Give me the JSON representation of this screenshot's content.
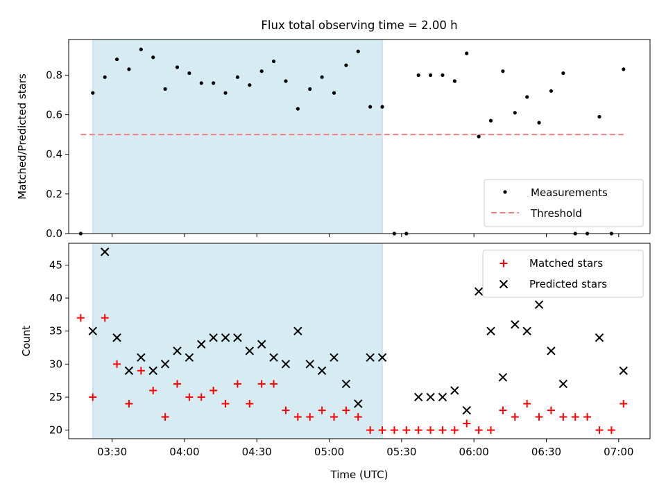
{
  "title": "Flux total observing time = 2.00 h",
  "xlabel": "Time (UTC)",
  "colors": {
    "span": "#add8e6",
    "measurements": "#000000",
    "threshold": "#f08080",
    "matched": "#ff0000",
    "predicted": "#000000"
  },
  "chart_data": [
    {
      "type": "scatter",
      "ylabel": "Matched/Predicted stars",
      "xlim": [
        "03:12",
        "07:13"
      ],
      "ylim": [
        0,
        0.98
      ],
      "yticks": [
        "0.0",
        "0.2",
        "0.4",
        "0.6",
        "0.8"
      ],
      "shaded_span": [
        "03:22",
        "05:22"
      ],
      "legend_position": "lower right",
      "threshold": {
        "name": "Threshold",
        "y": 0.5,
        "x_range": [
          "03:17",
          "07:02"
        ],
        "style": "dashed"
      },
      "series": [
        {
          "name": "Measurements",
          "x": [
            "03:17",
            "03:22",
            "03:27",
            "03:32",
            "03:37",
            "03:42",
            "03:47",
            "03:52",
            "03:57",
            "04:02",
            "04:07",
            "04:12",
            "04:17",
            "04:22",
            "04:27",
            "04:32",
            "04:37",
            "04:42",
            "04:47",
            "04:52",
            "04:57",
            "05:02",
            "05:07",
            "05:12",
            "05:17",
            "05:22",
            "05:27",
            "05:32",
            "05:37",
            "05:42",
            "05:47",
            "05:52",
            "05:57",
            "06:02",
            "06:07",
            "06:12",
            "06:17",
            "06:22",
            "06:27",
            "06:32",
            "06:37",
            "06:42",
            "06:47",
            "06:52",
            "06:57",
            "07:02"
          ],
          "y": [
            0.0,
            0.71,
            0.79,
            0.88,
            0.83,
            0.93,
            0.89,
            0.73,
            0.84,
            0.81,
            0.76,
            0.76,
            0.71,
            0.79,
            0.75,
            0.82,
            0.87,
            0.77,
            0.63,
            0.73,
            0.79,
            0.71,
            0.85,
            0.92,
            0.64,
            0.64,
            0.0,
            0.0,
            0.8,
            0.8,
            0.8,
            0.77,
            0.91,
            0.49,
            0.57,
            0.82,
            0.61,
            0.69,
            0.56,
            0.72,
            0.81,
            0.0,
            0.0,
            0.59,
            0.0,
            0.83
          ]
        }
      ]
    },
    {
      "type": "scatter",
      "ylabel": "Count",
      "xlim": [
        "03:12",
        "07:13"
      ],
      "ylim": [
        18.7,
        48.3
      ],
      "yticks": [
        "20",
        "25",
        "30",
        "35",
        "40",
        "45"
      ],
      "xticks": [
        "03:30",
        "04:00",
        "04:30",
        "05:00",
        "05:30",
        "06:00",
        "06:30",
        "07:00"
      ],
      "shaded_span": [
        "03:22",
        "05:22"
      ],
      "legend_position": "upper right",
      "series": [
        {
          "name": "Matched stars",
          "marker": "+",
          "x": [
            "03:17",
            "03:22",
            "03:27",
            "03:32",
            "03:37",
            "03:42",
            "03:47",
            "03:52",
            "03:57",
            "04:02",
            "04:07",
            "04:12",
            "04:17",
            "04:22",
            "04:27",
            "04:32",
            "04:37",
            "04:42",
            "04:47",
            "04:52",
            "04:57",
            "05:02",
            "05:07",
            "05:12",
            "05:17",
            "05:22",
            "05:27",
            "05:32",
            "05:37",
            "05:42",
            "05:47",
            "05:52",
            "05:57",
            "06:02",
            "06:07",
            "06:12",
            "06:17",
            "06:22",
            "06:27",
            "06:32",
            "06:37",
            "06:42",
            "06:47",
            "06:52",
            "06:57",
            "07:02"
          ],
          "y": [
            37,
            25,
            37,
            30,
            24,
            29,
            26,
            22,
            27,
            25,
            25,
            26,
            24,
            27,
            24,
            27,
            27,
            23,
            22,
            22,
            23,
            22,
            23,
            22,
            20,
            20,
            20,
            20,
            20,
            20,
            20,
            20,
            21,
            20,
            20,
            23,
            22,
            24,
            22,
            23,
            22,
            22,
            22,
            20,
            20,
            24
          ]
        },
        {
          "name": "Predicted stars",
          "marker": "x",
          "x": [
            "03:22",
            "03:27",
            "03:32",
            "03:37",
            "03:42",
            "03:47",
            "03:52",
            "03:57",
            "04:02",
            "04:07",
            "04:12",
            "04:17",
            "04:22",
            "04:27",
            "04:32",
            "04:37",
            "04:42",
            "04:47",
            "04:52",
            "04:57",
            "05:02",
            "05:07",
            "05:12",
            "05:17",
            "05:22",
            "05:37",
            "05:42",
            "05:47",
            "05:52",
            "05:57",
            "06:02",
            "06:07",
            "06:12",
            "06:17",
            "06:22",
            "06:27",
            "06:32",
            "06:37",
            "06:52",
            "07:02"
          ],
          "y": [
            35,
            47,
            34,
            29,
            31,
            29,
            30,
            32,
            31,
            33,
            34,
            34,
            34,
            32,
            33,
            31,
            30,
            35,
            30,
            29,
            31,
            27,
            24,
            31,
            31,
            25,
            25,
            25,
            26,
            23,
            41,
            35,
            28,
            36,
            35,
            39,
            32,
            27,
            34,
            29
          ]
        }
      ]
    }
  ]
}
